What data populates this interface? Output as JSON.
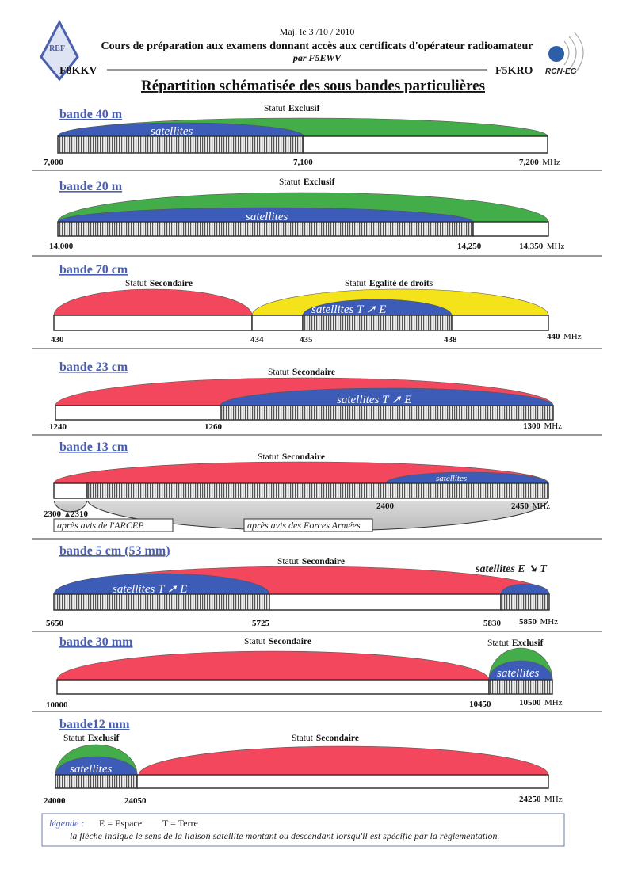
{
  "header": {
    "update": "Maj. le 3 /10 / 2010",
    "course": "Cours de préparation aux examens donnant accès aux certificats d'opérateur radioamateur",
    "author": "par F5EWV",
    "left_call": "F8KKV",
    "right_call": "F5KRO",
    "left_logo": "REF",
    "right_logo": "RCN-EG",
    "main_title": "Répartition schématisée des sous bandes particulières"
  },
  "colors": {
    "green": "#43ad4a",
    "blue": "#3d5cb8",
    "red": "#f2475c",
    "yellow": "#f4e21a",
    "title": "#4a5fae"
  },
  "status_word": "Statut",
  "bands": [
    {
      "title": "bande 40 m",
      "statuses": [
        "Exclusif"
      ],
      "satellites": [
        "satellites"
      ],
      "freqs": [
        "7,000",
        "7,100",
        "7,200"
      ],
      "unit": "MHz"
    },
    {
      "title": "bande 20 m",
      "statuses": [
        "Exclusif"
      ],
      "satellites": [
        "satellites"
      ],
      "freqs": [
        "14,000",
        "14,250",
        "14,350"
      ],
      "unit": "MHz"
    },
    {
      "title": "bande 70 cm",
      "statuses": [
        "Secondaire",
        "Egalité de droits"
      ],
      "satellites": [
        "satellites  T ➚ E"
      ],
      "freqs": [
        "430",
        "434",
        "435",
        "438",
        "440"
      ],
      "unit": "MHz"
    },
    {
      "title": "bande 23 cm",
      "statuses": [
        "Secondaire"
      ],
      "satellites": [
        "satellites T ➚ E"
      ],
      "freqs": [
        "1240",
        "1260",
        "1300"
      ],
      "unit": "MHz"
    },
    {
      "title": "bande 13 cm",
      "statuses": [
        "Secondaire"
      ],
      "satellites": [
        "satellites"
      ],
      "freqs": [
        "2300",
        "2310",
        "2400",
        "2450"
      ],
      "unit": "MHz",
      "notes": [
        "après avis de l'ARCEP",
        "après avis  des Forces Armées"
      ]
    },
    {
      "title": "bande 5 cm  (53 mm)",
      "statuses": [
        "Secondaire"
      ],
      "satellites": [
        "satellites T ➚ E",
        "satellites E ➘ T"
      ],
      "freqs": [
        "5650",
        "5725",
        "5830",
        "5850"
      ],
      "unit": "MHz"
    },
    {
      "title": "bande 30 mm",
      "statuses": [
        "Secondaire",
        "Exclusif"
      ],
      "satellites": [
        "satellites"
      ],
      "freqs": [
        "10000",
        "10450",
        "10500"
      ],
      "unit": "MHz"
    },
    {
      "title": "bande12 mm",
      "statuses": [
        "Exclusif",
        "Secondaire"
      ],
      "satellites": [
        "satellites"
      ],
      "freqs": [
        "24000",
        "24050",
        "24250"
      ],
      "unit": "MHz"
    }
  ],
  "legend": {
    "label": "légende :",
    "e": "E = Espace",
    "t": "T = Terre",
    "text": "la flèche indique le sens de la liaison satellite  montant ou descendant lorsqu'il est spécifié par la réglementation."
  }
}
